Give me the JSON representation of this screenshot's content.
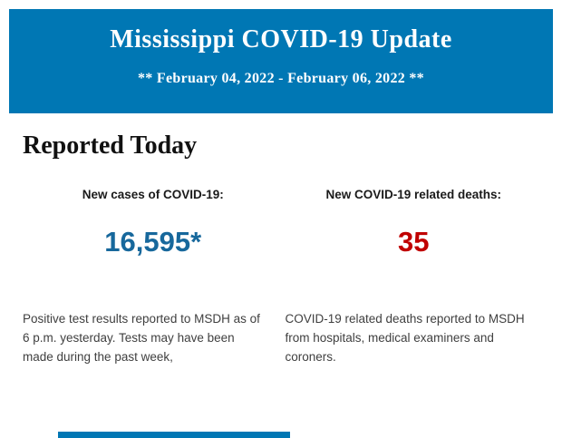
{
  "header": {
    "title": "Mississippi COVID-19 Update",
    "date_range": "** February 04, 2022 - February 06, 2022 **",
    "bg_color": "#0077b4",
    "text_color": "#ffffff"
  },
  "section": {
    "title": "Reported Today"
  },
  "stats": [
    {
      "label": "New cases of COVID-19:",
      "value": "16,595*",
      "value_color": "#17689c",
      "description": "Positive test results reported to MSDH as of 6 p.m. yesterday. Tests may have been made during the past week,"
    },
    {
      "label": "New COVID-19 related deaths:",
      "value": "35",
      "value_color": "#c00000",
      "description": "COVID-19 related deaths reported to MSDH from hospitals, medical examiners and coroners."
    }
  ],
  "footer": {
    "partial_bar_color": "#0077b4"
  }
}
